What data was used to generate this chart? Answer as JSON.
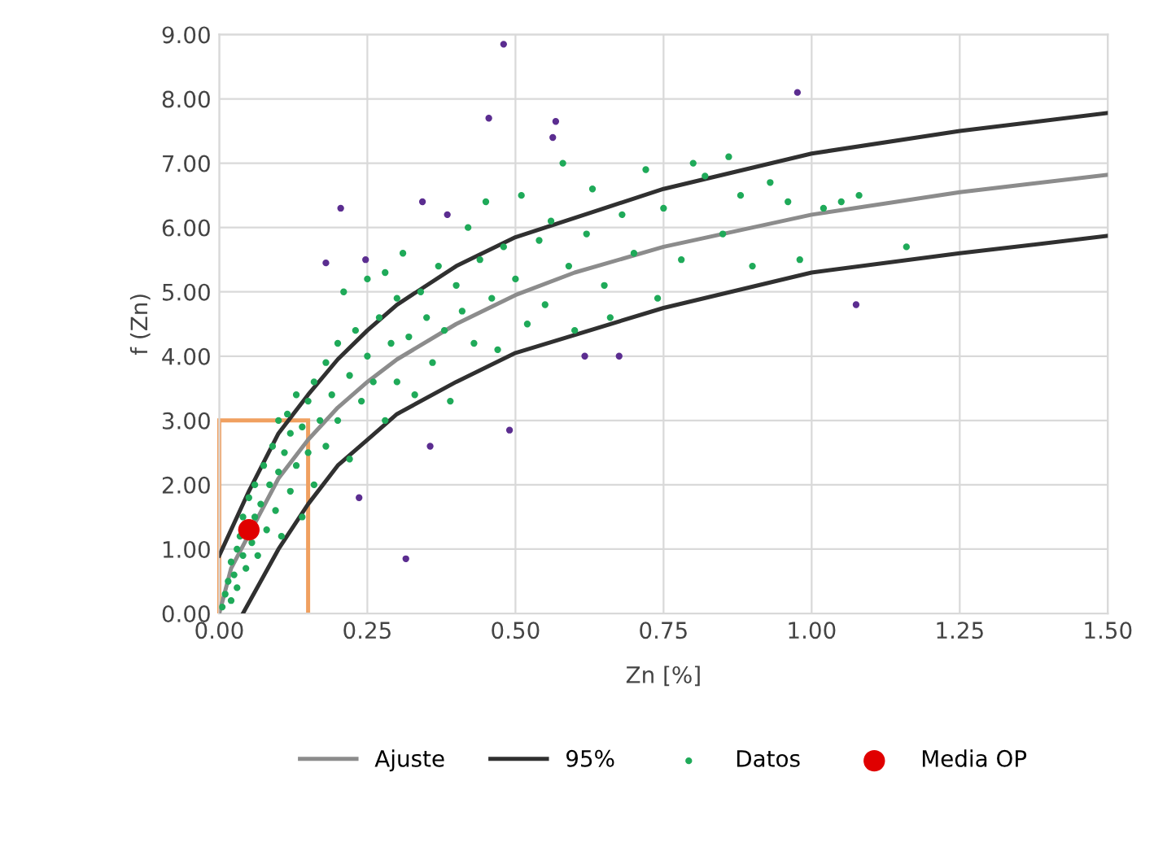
{
  "chart_data": {
    "type": "scatter",
    "xlabel": "Zn [%]",
    "ylabel": "f (Zn)",
    "grid": true,
    "legend": "bottom",
    "xlim": [
      0,
      1.5
    ],
    "ylim": [
      0,
      9
    ],
    "xticks": [
      {
        "value": 0,
        "label": "0.00"
      },
      {
        "value": 0.25,
        "label": "0.25"
      },
      {
        "value": 0.5,
        "label": "0.50"
      },
      {
        "value": 0.75,
        "label": "0.75"
      },
      {
        "value": 1,
        "label": "1.00"
      },
      {
        "value": 1.25,
        "label": "1.25"
      },
      {
        "value": 1.5,
        "label": "1.50"
      }
    ],
    "yticks": [
      {
        "value": 0,
        "label": "0.00"
      },
      {
        "value": 1,
        "label": "1.00"
      },
      {
        "value": 2,
        "label": "2.00"
      },
      {
        "value": 3,
        "label": "3.00"
      },
      {
        "value": 4,
        "label": "4.00"
      },
      {
        "value": 5,
        "label": "5.00"
      },
      {
        "value": 6,
        "label": "6.00"
      },
      {
        "value": 7,
        "label": "7.00"
      },
      {
        "value": 8,
        "label": "8.00"
      },
      {
        "value": 9,
        "label": "9.00"
      }
    ],
    "series": [
      {
        "name": "Ajuste",
        "type": "line",
        "marker": "none",
        "color": "#8c8c8c",
        "x": [
          0,
          0.02,
          0.1,
          0.15,
          0.2,
          0.25,
          0.3,
          0.4,
          0.5,
          0.6,
          0.75,
          1.0,
          1.25,
          1.5
        ],
        "values": [
          0,
          0.7,
          2.1,
          2.7,
          3.2,
          3.6,
          3.95,
          4.5,
          4.95,
          5.3,
          5.7,
          6.2,
          6.55,
          6.82
        ]
      },
      {
        "name": "95%",
        "type": "line",
        "marker": "none",
        "color": "#303030",
        "x": [
          0,
          0.05,
          0.1,
          0.15,
          0.2,
          0.25,
          0.3,
          0.4,
          0.5,
          0.75,
          1.0,
          1.25,
          1.5
        ],
        "values": [
          0.9,
          1.9,
          2.8,
          3.4,
          3.95,
          4.4,
          4.8,
          5.4,
          5.85,
          6.6,
          7.15,
          7.5,
          7.78
        ]
      },
      {
        "type": "line",
        "marker": "none",
        "color": "#303030",
        "x": [
          0.04,
          0.1,
          0.15,
          0.2,
          0.25,
          0.3,
          0.4,
          0.5,
          0.75,
          1.0,
          1.25,
          1.5
        ],
        "values": [
          0,
          1.0,
          1.7,
          2.3,
          2.7,
          3.1,
          3.6,
          4.05,
          4.75,
          5.3,
          5.6,
          5.87
        ]
      },
      {
        "type": "histogram",
        "color": "#f0a060",
        "bins": [
          0,
          0.15
        ],
        "values": [
          3
        ]
      },
      {
        "name": "Datos",
        "marker": "circle",
        "color": "#1faa59",
        "x": [
          0.005,
          0.01,
          0.015,
          0.02,
          0.02,
          0.025,
          0.03,
          0.03,
          0.035,
          0.04,
          0.04,
          0.045,
          0.05,
          0.055,
          0.06,
          0.06,
          0.065,
          0.07,
          0.075,
          0.08,
          0.085,
          0.09,
          0.095,
          0.1,
          0.1,
          0.105,
          0.11,
          0.115,
          0.12,
          0.12,
          0.13,
          0.13,
          0.14,
          0.14,
          0.15,
          0.15,
          0.16,
          0.16,
          0.17,
          0.18,
          0.18,
          0.19,
          0.2,
          0.2,
          0.21,
          0.22,
          0.22,
          0.23,
          0.24,
          0.25,
          0.25,
          0.26,
          0.27,
          0.28,
          0.28,
          0.29,
          0.3,
          0.3,
          0.31,
          0.32,
          0.33,
          0.34,
          0.35,
          0.36,
          0.37,
          0.38,
          0.39,
          0.4,
          0.41,
          0.42,
          0.43,
          0.44,
          0.45,
          0.46,
          0.47,
          0.48,
          0.5,
          0.51,
          0.52,
          0.54,
          0.55,
          0.56,
          0.58,
          0.59,
          0.6,
          0.62,
          0.63,
          0.65,
          0.66,
          0.68,
          0.7,
          0.72,
          0.74,
          0.75,
          0.78,
          0.8,
          0.82,
          0.85,
          0.86,
          0.88,
          0.9,
          0.93,
          0.96,
          0.98,
          1.02,
          1.05,
          1.08,
          1.16
        ],
        "values": [
          0.1,
          0.3,
          0.5,
          0.2,
          0.8,
          0.6,
          1.0,
          0.4,
          1.2,
          0.9,
          1.5,
          0.7,
          1.8,
          1.1,
          1.5,
          2.0,
          0.9,
          1.7,
          2.3,
          1.3,
          2.0,
          2.6,
          1.6,
          2.2,
          3.0,
          1.2,
          2.5,
          3.1,
          1.9,
          2.8,
          2.3,
          3.4,
          1.5,
          2.9,
          2.5,
          3.3,
          3.6,
          2.0,
          3.0,
          3.9,
          2.6,
          3.4,
          4.2,
          3.0,
          5.0,
          3.7,
          2.4,
          4.4,
          3.3,
          4.0,
          5.2,
          3.6,
          4.6,
          3.0,
          5.3,
          4.2,
          3.6,
          4.9,
          5.6,
          4.3,
          3.4,
          5.0,
          4.6,
          3.9,
          5.4,
          4.4,
          3.3,
          5.1,
          4.7,
          6.0,
          4.2,
          5.5,
          6.4,
          4.9,
          4.1,
          5.7,
          5.2,
          6.5,
          4.5,
          5.8,
          4.8,
          6.1,
          7.0,
          5.4,
          4.4,
          5.9,
          6.6,
          5.1,
          4.6,
          6.2,
          5.6,
          6.9,
          4.9,
          6.3,
          5.5,
          7.0,
          6.8,
          5.9,
          7.1,
          6.5,
          5.4,
          6.7,
          6.4,
          5.5,
          6.3,
          6.4,
          6.5,
          5.7
        ]
      },
      {
        "marker": "circle",
        "color": "#5b2d90",
        "x": [
          0.48,
          0.455,
          0.568,
          0.563,
          0.205,
          0.343,
          0.385,
          0.18,
          0.247,
          0.617,
          0.675,
          0.49,
          0.356,
          0.236,
          0.315,
          0.976,
          1.075
        ],
        "values": [
          8.85,
          7.7,
          7.65,
          7.4,
          6.3,
          6.4,
          6.2,
          5.45,
          5.5,
          4.0,
          4.0,
          2.85,
          2.6,
          1.8,
          0.85,
          8.1,
          4.8
        ]
      },
      {
        "name": "Media OP",
        "marker": "circle",
        "color": "#e00000",
        "x": [
          0.05
        ],
        "values": [
          1.3
        ]
      }
    ]
  }
}
